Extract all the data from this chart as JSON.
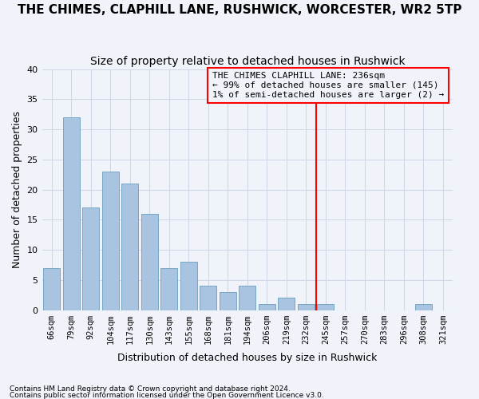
{
  "title": "THE CHIMES, CLAPHILL LANE, RUSHWICK, WORCESTER, WR2 5TP",
  "subtitle": "Size of property relative to detached houses in Rushwick",
  "xlabel": "Distribution of detached houses by size in Rushwick",
  "ylabel": "Number of detached properties",
  "footnote1": "Contains HM Land Registry data © Crown copyright and database right 2024.",
  "footnote2": "Contains public sector information licensed under the Open Government Licence v3.0.",
  "categories": [
    "66sqm",
    "79sqm",
    "92sqm",
    "104sqm",
    "117sqm",
    "130sqm",
    "143sqm",
    "155sqm",
    "168sqm",
    "181sqm",
    "194sqm",
    "206sqm",
    "219sqm",
    "232sqm",
    "245sqm",
    "257sqm",
    "270sqm",
    "283sqm",
    "296sqm",
    "308sqm",
    "321sqm"
  ],
  "values": [
    7,
    32,
    17,
    23,
    21,
    16,
    7,
    8,
    4,
    3,
    4,
    1,
    2,
    1,
    1,
    0,
    0,
    0,
    0,
    1,
    0
  ],
  "bar_color": "#a8c4e0",
  "bar_edge_color": "#6a9fc0",
  "grid_color": "#d0d8e8",
  "background_color": "#f0f4fa",
  "annotation_box_text": [
    "THE CHIMES CLAPHILL LANE: 236sqm",
    "← 99% of detached houses are smaller (145)",
    "1% of semi-detached houses are larger (2) →"
  ],
  "vline_x_index": 13.5,
  "vline_color": "red",
  "ylim": [
    0,
    40
  ],
  "yticks": [
    0,
    5,
    10,
    15,
    20,
    25,
    30,
    35,
    40
  ],
  "title_fontsize": 11,
  "subtitle_fontsize": 10,
  "axis_label_fontsize": 9,
  "tick_fontsize": 7.5,
  "annot_fontsize": 8
}
